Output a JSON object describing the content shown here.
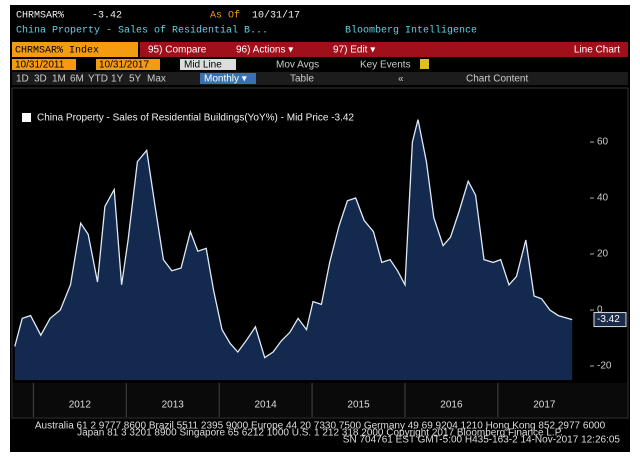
{
  "header": {
    "ticker": "CHRMSAR%",
    "price": "-3.42",
    "as_of_label": "As Of",
    "as_of": "10/31/17",
    "source": "Bloomberg Intelligence",
    "description": "China Property - Sales of Residential B..."
  },
  "toolbar": {
    "security": "CHRMSAR% Index",
    "compare": "95) Compare",
    "actions": "96) Actions ▾",
    "edit": "97) Edit ▾",
    "view": "Line Chart"
  },
  "range": {
    "start": "10/31/2011",
    "end": "10/31/2017",
    "style": "Mid Line",
    "mov_avgs": "Mov Avgs",
    "key_events": "Key Events"
  },
  "periods": [
    "1D",
    "3D",
    "1M",
    "6M",
    "YTD",
    "1Y",
    "5Y",
    "Max"
  ],
  "frequency": "Monthly ▾",
  "table": "Table",
  "chart_content": "Chart Content",
  "chart_data": {
    "type": "line",
    "series": [
      {
        "name": "China Property - Sales of Residential Buildings(YoY%) - Mid Price -3.42",
        "color": "#dfe8f5",
        "fill": "#13294d",
        "x": [
          2011.8,
          2011.88,
          2011.97,
          2012.08,
          2012.18,
          2012.29,
          2012.4,
          2012.51,
          2012.59,
          2012.69,
          2012.77,
          2012.87,
          2012.95,
          2013.02,
          2013.12,
          2013.22,
          2013.31,
          2013.4,
          2013.49,
          2013.59,
          2013.69,
          2013.77,
          2013.86,
          2013.94,
          2014.03,
          2014.12,
          2014.2,
          2014.29,
          2014.39,
          2014.49,
          2014.58,
          2014.67,
          2014.76,
          2014.85,
          2014.94,
          2015.01,
          2015.1,
          2015.19,
          2015.29,
          2015.38,
          2015.47,
          2015.56,
          2015.66,
          2015.75,
          2015.84,
          2015.92,
          2016.0,
          2016.08,
          2016.14,
          2016.23,
          2016.31,
          2016.41,
          2016.49,
          2016.58,
          2016.68,
          2016.76,
          2016.85,
          2016.95,
          2017.03,
          2017.12,
          2017.2,
          2017.3,
          2017.39,
          2017.47,
          2017.56,
          2017.65,
          2017.8
        ],
        "values": [
          -13,
          -3,
          -2,
          -9,
          -3,
          0,
          9,
          31,
          27,
          10,
          37,
          43,
          9,
          25,
          53,
          57,
          37,
          18,
          14,
          15,
          28,
          21,
          22,
          7,
          -7,
          -12,
          -15,
          -11,
          -6,
          -17,
          -15,
          -11,
          -8,
          -3,
          -7,
          3,
          2,
          17,
          30,
          39,
          40,
          32,
          28,
          17,
          18,
          14,
          9,
          60,
          68,
          53,
          33,
          23,
          26,
          35,
          46,
          41,
          18,
          17,
          18,
          9,
          12,
          25,
          5,
          4,
          0,
          -2,
          -3.42
        ]
      }
    ],
    "xlim": [
      2011.77,
      2017.83
    ],
    "xticks": [
      2012,
      2013,
      2014,
      2015,
      2016,
      2017
    ],
    "ylim": [
      -25,
      75
    ],
    "yticks": [
      -20,
      0,
      20,
      40,
      60
    ]
  },
  "footer": [
    "Australia 61 2 9777 8600  Brazil 5511 2395 9000  Europe 44 20 7330 7500  Germany 49 69 9204 1210  Hong Kong 852 2977 6000",
    "Japan 81 3 3201 8900      Singapore 65 6212 1000      U.S. 1 212 318 2000      Copyright 2017 Bloomberg Finance L.P.",
    "SN 704761 EST  GMT-5:00 H435-163-2 14-Nov-2017 12:26:05"
  ]
}
